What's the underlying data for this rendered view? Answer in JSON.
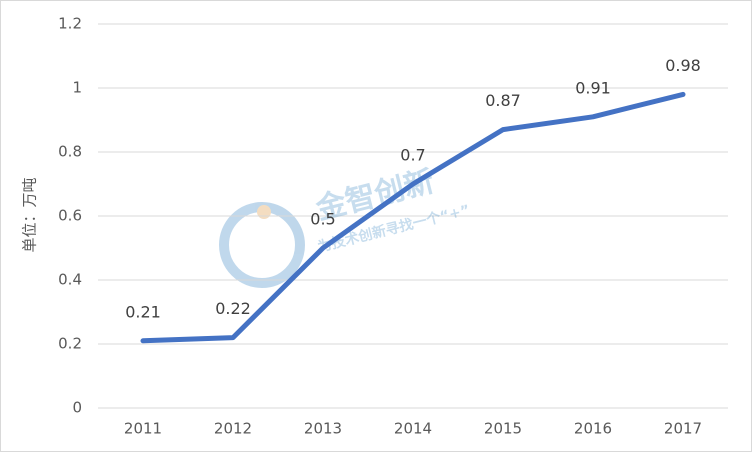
{
  "chart_data": {
    "type": "line",
    "y_label": "单位：万吨",
    "categories": [
      "2011",
      "2012",
      "2013",
      "2014",
      "2015",
      "2016",
      "2017"
    ],
    "values": [
      0.21,
      0.22,
      0.5,
      0.7,
      0.87,
      0.91,
      0.98
    ],
    "color": "#4472c4",
    "ylim": [
      0,
      1.2
    ],
    "yticks": [
      0,
      0.2,
      0.4,
      0.6,
      0.8,
      1,
      1.2
    ],
    "grid": true,
    "watermark": {
      "title": "金智创新",
      "subtitle": "为技术创新寻找一个“+”"
    }
  }
}
